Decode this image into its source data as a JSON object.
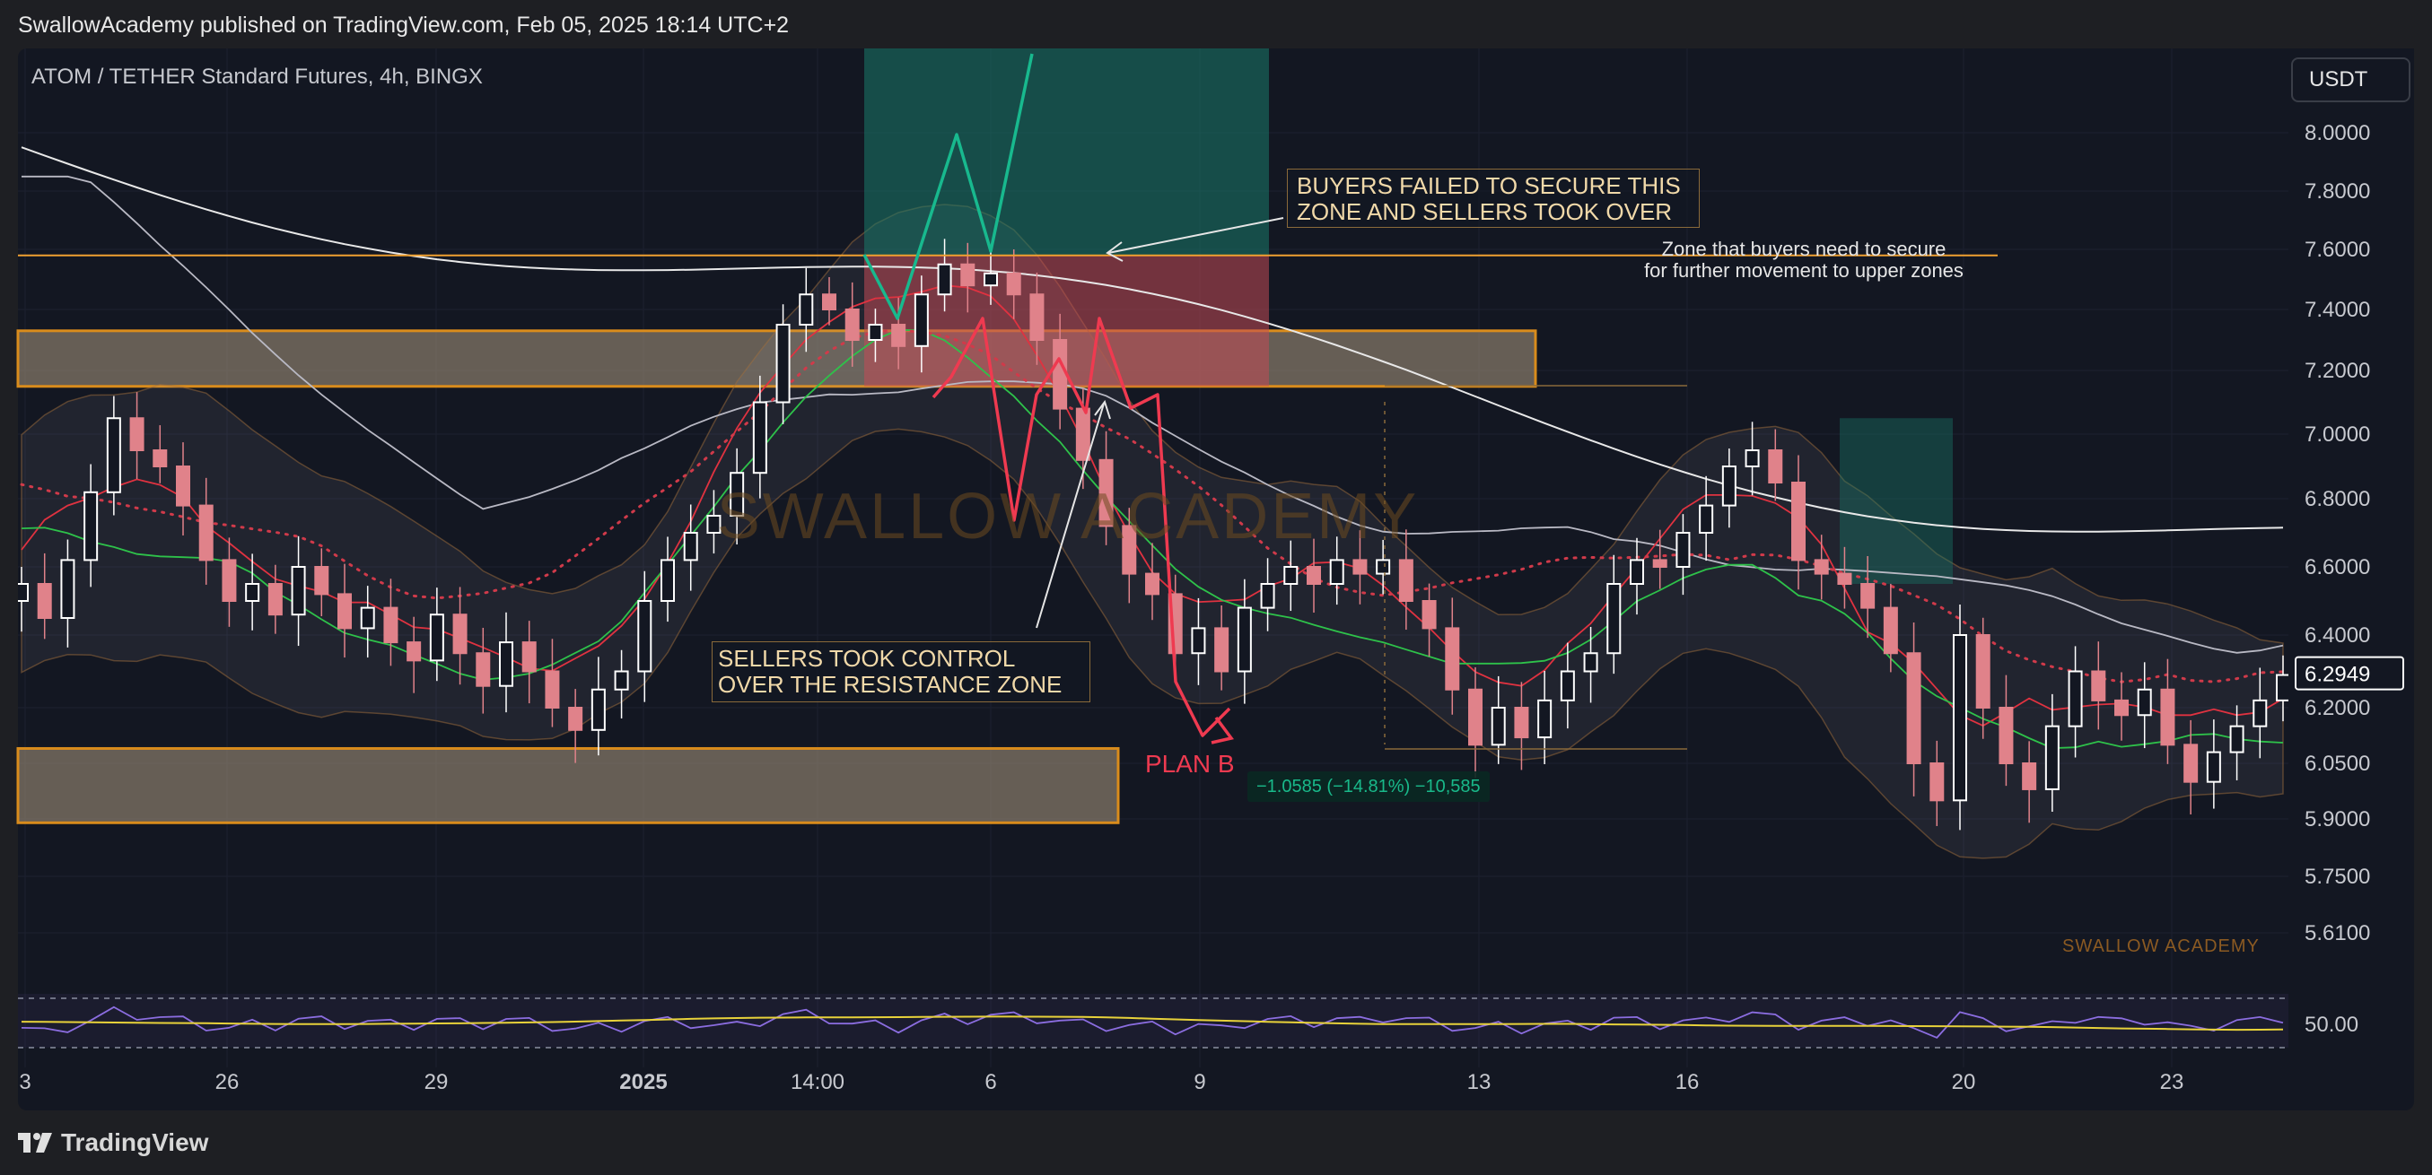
{
  "header": {
    "publisher": "SwallowAcademy published on TradingView.com, Feb 05, 2025 18:14 UTC+2"
  },
  "chart": {
    "symbol": "ATOM / TETHER Standard Futures, 4h, BINGX",
    "currency": "USDT",
    "watermark": "SWALLOW ACADEMY",
    "watermark_small": "SWALLOW ACADEMY",
    "last_price": "6.2949"
  },
  "annotations": {
    "buyers_failed_line1": "BUYERS FAILED TO SECURE THIS",
    "buyers_failed_line2": "ZONE AND SELLERS TOOK OVER",
    "zone_secure_line1": "Zone that buyers need to secure",
    "zone_secure_line2": "for further movement to upper zones",
    "sellers_took_line1": "SELLERS TOOK CONTROL",
    "sellers_took_line2": "OVER THE RESISTANCE ZONE",
    "plan_b": "PLAN B",
    "measure": "−1.0585 (−14.81%) −10,585"
  },
  "footer": {
    "brand": "TradingView"
  },
  "colors": {
    "background": "#131722",
    "bull_candle": "#ffffff",
    "bear_candle": "#e0828a",
    "zone_fill": "#9a8b74",
    "zone_border": "#d98c1c",
    "long_target_fill": "#1a7a6a",
    "long_stop_fill": "#c24a55",
    "ema_red": "#e03240",
    "ema_green": "#2ec24a",
    "ma_white": "#e8e8e8",
    "ma_gray": "#b9b9c4",
    "rsi_line": "#8b6de0",
    "rsi_signal": "#e8d23a",
    "projection_red": "#ef3a50",
    "projection_green": "#18b98e",
    "level_orange": "#f0a030"
  },
  "chart_data": {
    "type": "candlestick",
    "symbol": "ATOM / TETHER Standard Futures",
    "interval": "4h",
    "exchange": "BINGX",
    "y_axis_ticks": [
      8.0,
      7.8,
      7.6,
      7.4,
      7.2,
      7.0,
      6.8,
      6.6,
      6.4,
      6.2,
      6.05,
      5.9,
      5.75,
      5.61
    ],
    "y_tick_labels": [
      "8.0000",
      "7.8000",
      "7.6000",
      "7.4000",
      "7.2000",
      "7.0000",
      "6.8000",
      "6.6000",
      "6.4000",
      "6.2000",
      "6.0500",
      "5.9000",
      "5.7500",
      "5.6100"
    ],
    "x_tick_labels": [
      "3",
      "26",
      "29",
      "2025",
      "14:00",
      "6",
      "9",
      "13",
      "16",
      "20",
      "23"
    ],
    "bold_x_label": "2025",
    "ylim": [
      5.52,
      8.3
    ],
    "resistance_level": 7.58,
    "zones": [
      {
        "name": "resistance",
        "low": 7.15,
        "high": 7.33
      },
      {
        "name": "support",
        "low": 5.89,
        "high": 6.09
      }
    ],
    "last_price": 6.2949,
    "rsi": {
      "tick": 50.0,
      "tick_label": "50.00",
      "upper_band": 70,
      "lower_band": 30
    },
    "close_path": [
      6.55,
      6.45,
      6.62,
      6.82,
      7.05,
      6.95,
      6.9,
      6.78,
      6.62,
      6.5,
      6.55,
      6.46,
      6.6,
      6.52,
      6.42,
      6.48,
      6.38,
      6.33,
      6.46,
      6.35,
      6.26,
      6.38,
      6.3,
      6.2,
      6.14,
      6.25,
      6.3,
      6.5,
      6.62,
      6.7,
      6.75,
      6.88,
      7.1,
      7.35,
      7.45,
      7.4,
      7.3,
      7.35,
      7.28,
      7.45,
      7.55,
      7.48,
      7.52,
      7.45,
      7.3,
      7.08,
      6.92,
      6.72,
      6.58,
      6.52,
      6.35,
      6.42,
      6.3,
      6.48,
      6.55,
      6.6,
      6.55,
      6.62,
      6.58,
      6.62,
      6.5,
      6.42,
      6.25,
      6.1,
      6.2,
      6.12,
      6.22,
      6.3,
      6.35,
      6.55,
      6.62,
      6.6,
      6.7,
      6.78,
      6.9,
      6.95,
      6.85,
      6.62,
      6.58,
      6.55,
      6.48,
      6.35,
      6.05,
      5.95,
      6.4,
      6.2,
      6.05,
      5.98,
      6.15,
      6.3,
      6.22,
      6.18,
      6.25,
      6.1,
      6.0,
      6.08,
      6.15,
      6.22,
      6.29
    ]
  }
}
